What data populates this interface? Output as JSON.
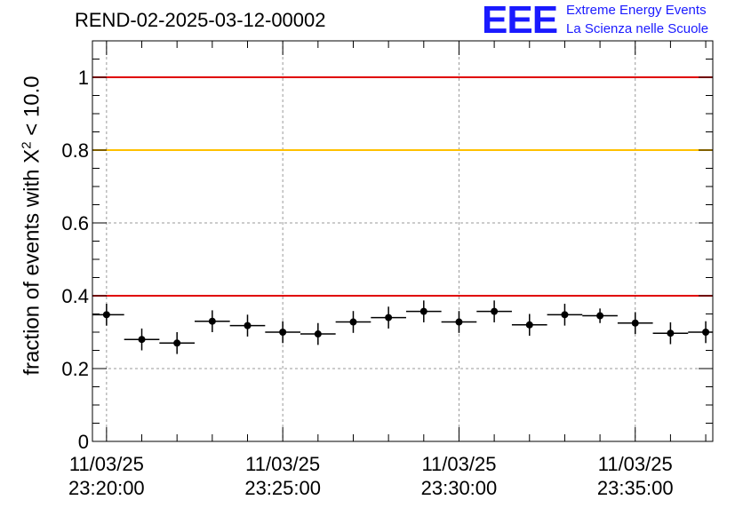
{
  "header": {
    "title": "REND-02-2025-03-12-00002"
  },
  "logo": {
    "mark": "EEE",
    "line1": "Extreme Energy Events",
    "line2": "La Scienza nelle Scuole",
    "color": "#1a1aff"
  },
  "chart_data": {
    "type": "scatter",
    "title": "REND-02-2025-03-12-00002",
    "ylabel_main": "fraction of events with",
    "ylabel_symbol": "X",
    "ylabel_sup": "2",
    "ylabel_rest": " < 10.0",
    "ylim": [
      0,
      1.1
    ],
    "xlim_minutes": [
      -0.4,
      17.2
    ],
    "x_ticks": [
      {
        "minute": 0,
        "date": "11/03/25",
        "time": "23:20:00"
      },
      {
        "minute": 5,
        "date": "11/03/25",
        "time": "23:25:00"
      },
      {
        "minute": 10,
        "date": "11/03/25",
        "time": "23:30:00"
      },
      {
        "minute": 15,
        "date": "11/03/25",
        "time": "23:35:00"
      }
    ],
    "y_ticks": [
      {
        "value": 0,
        "label": "0"
      },
      {
        "value": 0.2,
        "label": "0.2"
      },
      {
        "value": 0.4,
        "label": "0.4"
      },
      {
        "value": 0.6,
        "label": "0.6"
      },
      {
        "value": 0.8,
        "label": "0.8"
      },
      {
        "value": 1.0,
        "label": "1"
      }
    ],
    "grid": true,
    "reference_lines": [
      {
        "y": 1.0,
        "color": "#e00000"
      },
      {
        "y": 0.8,
        "color": "#ffc000"
      },
      {
        "y": 0.4,
        "color": "#e00000"
      }
    ],
    "bin_width_minutes": 1,
    "x_minutes": [
      0,
      1,
      2,
      3,
      4,
      5,
      6,
      7,
      8,
      9,
      10,
      11,
      12,
      13,
      14,
      15,
      16,
      17
    ],
    "values": [
      0.348,
      0.28,
      0.27,
      0.33,
      0.318,
      0.3,
      0.295,
      0.328,
      0.34,
      0.357,
      0.328,
      0.357,
      0.32,
      0.348,
      0.345,
      0.325,
      0.297,
      0.3
    ],
    "errors": [
      0.03,
      0.03,
      0.03,
      0.03,
      0.03,
      0.03,
      0.03,
      0.03,
      0.03,
      0.03,
      0.03,
      0.03,
      0.03,
      0.03,
      0.02,
      0.03,
      0.03,
      0.03
    ]
  }
}
